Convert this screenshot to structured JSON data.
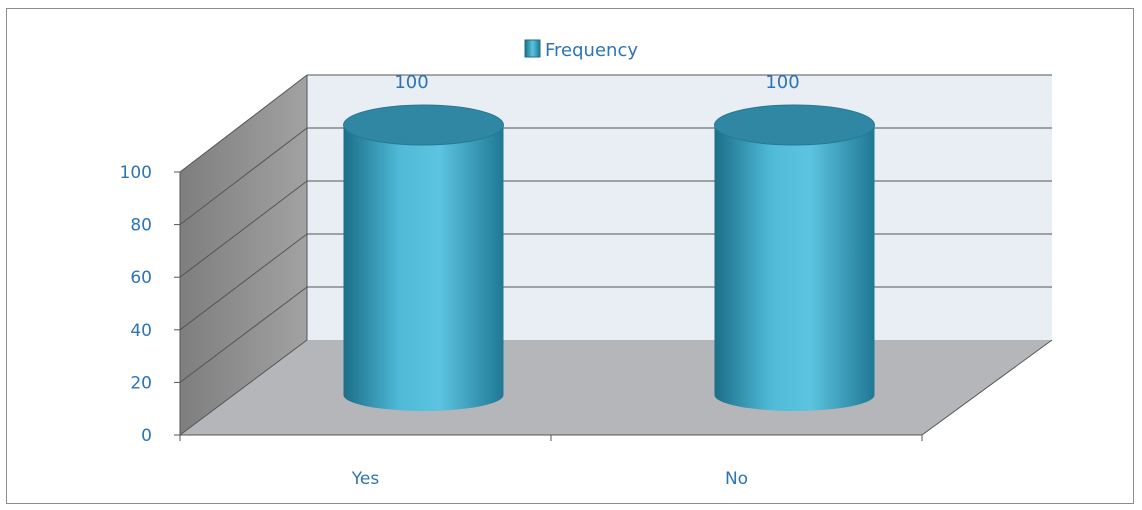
{
  "chart_data": {
    "type": "bar",
    "style": "3d-cylinder",
    "categories": [
      "Yes",
      "No"
    ],
    "series": [
      {
        "name": "Frequency",
        "values": [
          100,
          100
        ]
      }
    ],
    "y_ticks": [
      "0",
      "20",
      "40",
      "60",
      "80",
      "100"
    ],
    "ylim": [
      0,
      100
    ],
    "grid": true,
    "legend_position": "top-center",
    "data_labels": [
      "100",
      "100"
    ],
    "colors": {
      "bar": "#3ea8c6",
      "bar_light": "#5cc4e0",
      "bar_dark": "#1b6e88",
      "top": "#2f87a3",
      "back_wall": "#e8eef3",
      "side_wall": "#8e8e8e",
      "floor": "#b4b6b9",
      "text": "#2e74b5"
    }
  }
}
